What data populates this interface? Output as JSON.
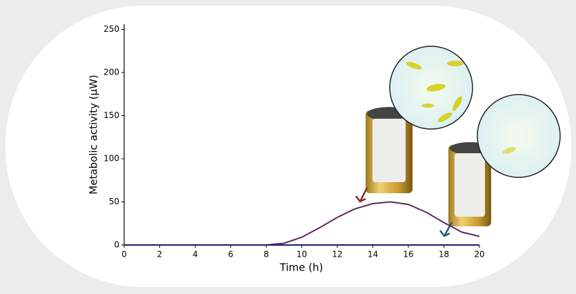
{
  "chart_data": {
    "type": "line",
    "x": [
      0,
      1,
      2,
      3,
      4,
      5,
      6,
      7,
      8,
      9,
      10,
      11,
      12,
      13,
      14,
      15,
      16,
      17,
      18,
      19,
      20
    ],
    "series": [
      {
        "color": "#5a2a5c",
        "values": [
          0,
          0,
          0,
          0,
          0,
          0,
          0,
          0,
          0,
          2,
          9,
          20,
          32,
          42,
          48,
          50,
          47,
          38,
          26,
          15,
          10
        ]
      },
      {
        "color": "#1f1f6e",
        "values": [
          0,
          0,
          0,
          0,
          0,
          0,
          0,
          0,
          0,
          0,
          0,
          0,
          0,
          0,
          0,
          0,
          0,
          0,
          0,
          0,
          0
        ]
      }
    ],
    "xlabel": "Time (h)",
    "ylabel": "Metabolic activity (μW)",
    "xlim": [
      0,
      20
    ],
    "ylim": [
      0,
      256
    ],
    "xticks": [
      0,
      2,
      4,
      6,
      8,
      10,
      12,
      14,
      16,
      18,
      20
    ],
    "yticks": [
      0,
      50,
      100,
      150,
      200,
      250
    ]
  }
}
